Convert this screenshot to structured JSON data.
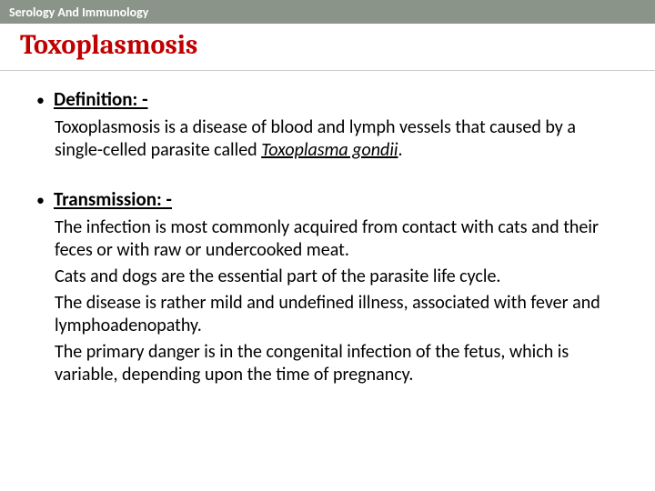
{
  "header": {
    "subject": "Serology And Immunology"
  },
  "slide": {
    "title": "Toxoplasmosis",
    "sections": [
      {
        "heading": "Definition: -",
        "paragraphs": [
          {
            "pre": "Toxoplasmosis is a disease of blood and lymph vessels that caused by a single-celled parasite called ",
            "emph": "Toxoplasma gondii",
            "post": "."
          }
        ]
      },
      {
        "heading": "Transmission: -",
        "paragraphs": [
          {
            "pre": "The infection is most commonly acquired from contact with cats and their feces or with raw or undercooked meat.",
            "emph": "",
            "post": ""
          },
          {
            "pre": "Cats and dogs are the essential part of the parasite life cycle.",
            "emph": "",
            "post": ""
          },
          {
            "pre": "The disease is rather mild and undefined illness, associated with fever and lymphoadenopathy.",
            "emph": "",
            "post": ""
          },
          {
            "pre": "The primary danger is in the congenital infection of the fetus, which is variable, depending upon the time of pregnancy.",
            "emph": "",
            "post": ""
          }
        ]
      }
    ]
  },
  "colors": {
    "header_bg": "#8a9488",
    "header_text": "#ffffff",
    "title_color": "#c00000",
    "body_text": "#000000",
    "divider": "#cccccc"
  }
}
